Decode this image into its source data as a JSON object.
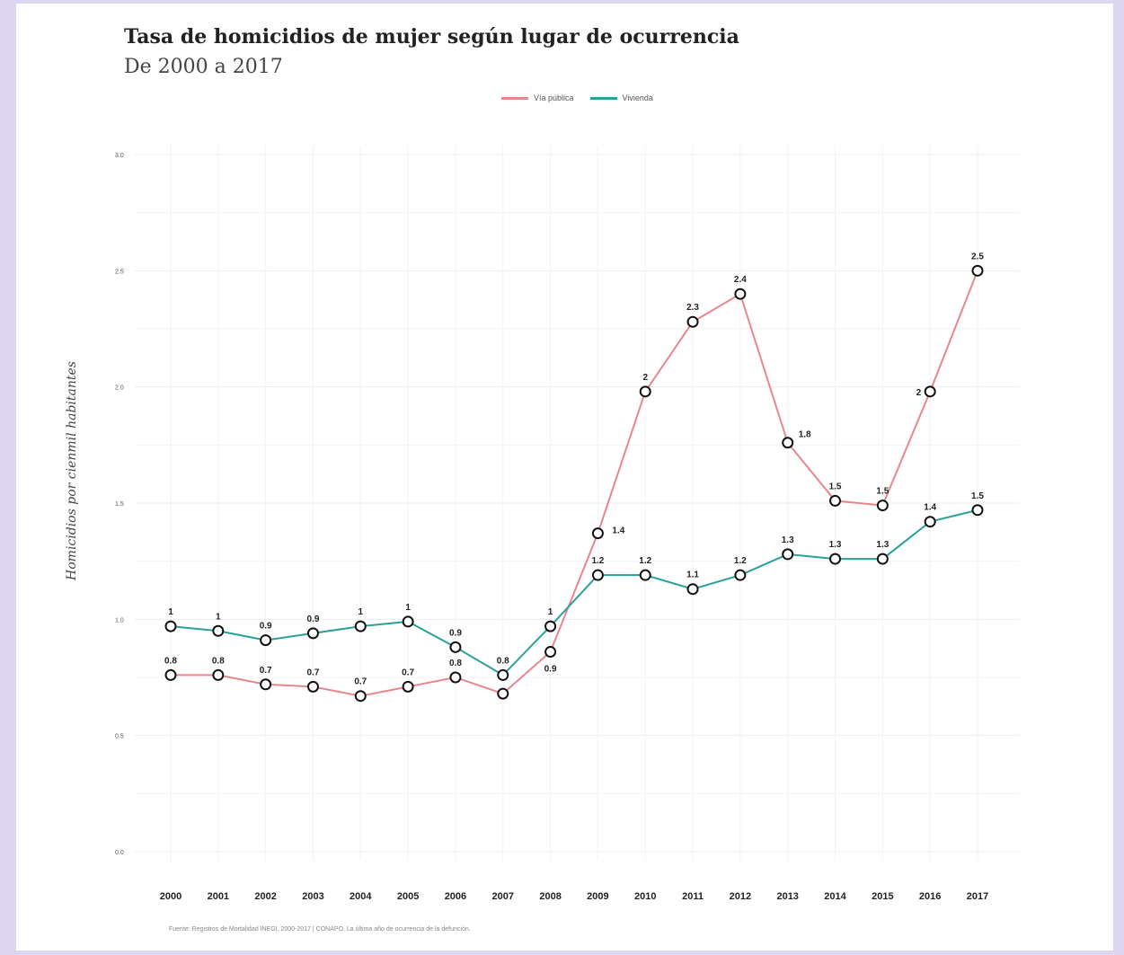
{
  "chart_data": {
    "type": "line",
    "title": "Tasa de homicidios de mujer según lugar de ocurrencia",
    "subtitle": "De 2000 a 2017",
    "ylabel": "Homicidios por cienmil habitantes",
    "xlabel": "",
    "source": "Fuente: Registros de Mortalidad INEGI, 2000-2017 | CONAPO. La última año de ocurrencia de la defunción.",
    "x": [
      "2000",
      "2001",
      "2002",
      "2003",
      "2004",
      "2005",
      "2006",
      "2007",
      "2008",
      "2009",
      "2010",
      "2011",
      "2012",
      "2013",
      "2014",
      "2015",
      "2016",
      "2017"
    ],
    "ylim": [
      0,
      3
    ],
    "yticks": [
      "0.0",
      "0.5",
      "1.0",
      "1.5",
      "2.0",
      "2.5",
      "3.0"
    ],
    "grid": true,
    "legend_position": "top",
    "series": [
      {
        "name": "Vía pública",
        "color": "#e8868e",
        "values": [
          0.76,
          0.76,
          0.72,
          0.71,
          0.67,
          0.71,
          0.75,
          0.68,
          0.86,
          1.37,
          1.98,
          2.28,
          2.4,
          1.76,
          1.51,
          1.49,
          1.98,
          2.5
        ],
        "labels": [
          "0.8",
          "0.8",
          "0.7",
          "0.7",
          "0.7",
          "0.7",
          "0.8",
          "",
          "0.9",
          "1.4",
          "2",
          "2.3",
          "2.4",
          "1.8",
          "1.5",
          "1.5",
          "2",
          "2.5"
        ]
      },
      {
        "name": "Vivienda",
        "color": "#2aa198",
        "values": [
          0.97,
          0.95,
          0.91,
          0.94,
          0.97,
          0.99,
          0.88,
          0.76,
          0.97,
          1.19,
          1.19,
          1.13,
          1.19,
          1.28,
          1.26,
          1.26,
          1.42,
          1.47
        ],
        "labels": [
          "1",
          "1",
          "0.9",
          "0.9",
          "1",
          "1",
          "0.9",
          "0.8",
          "1",
          "1.2",
          "1.2",
          "1.1",
          "1.2",
          "1.3",
          "1.3",
          "1.3",
          "1.4",
          "1.5"
        ]
      }
    ]
  }
}
